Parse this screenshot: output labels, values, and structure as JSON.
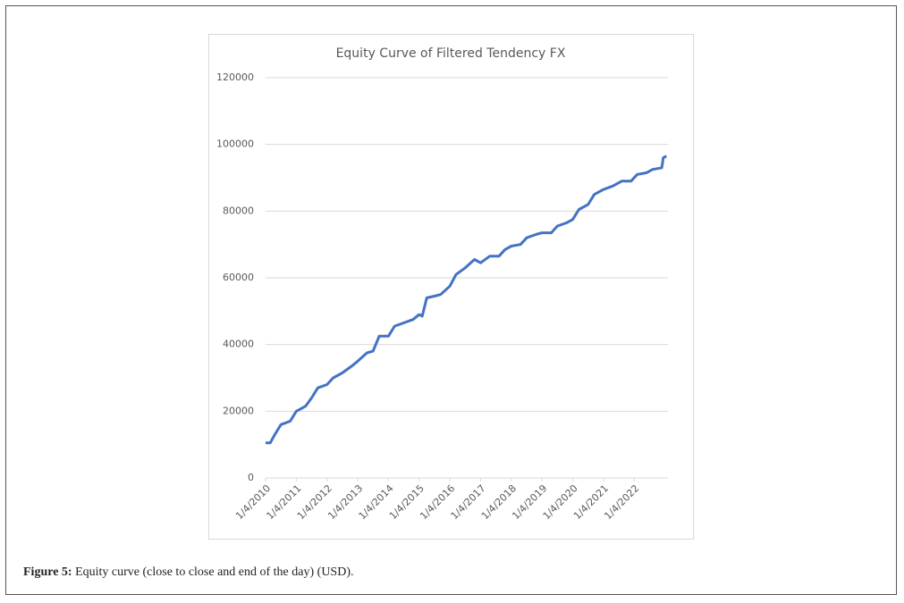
{
  "chart_data": {
    "type": "line",
    "title": "Equity Curve of Filtered Tendency FX",
    "x": [
      2010.0,
      2010.15,
      2010.3,
      2010.5,
      2010.8,
      2011.0,
      2011.3,
      2011.5,
      2011.7,
      2012.0,
      2012.2,
      2012.5,
      2012.8,
      2013.0,
      2013.3,
      2013.5,
      2013.7,
      2014.0,
      2014.2,
      2014.5,
      2014.8,
      2015.0,
      2015.1,
      2015.25,
      2015.5,
      2015.7,
      2016.0,
      2016.2,
      2016.5,
      2016.8,
      2017.0,
      2017.3,
      2017.6,
      2017.8,
      2018.0,
      2018.3,
      2018.5,
      2018.8,
      2019.0,
      2019.3,
      2019.5,
      2019.8,
      2020.0,
      2020.2,
      2020.5,
      2020.7,
      2021.0,
      2021.3,
      2021.6,
      2021.9,
      2022.1,
      2022.4,
      2022.6,
      2022.9,
      2022.95,
      2023.05
    ],
    "series": [
      {
        "color": "#4472c4",
        "values": [
          10500,
          10500,
          13000,
          16000,
          17000,
          20000,
          21500,
          24000,
          27000,
          28000,
          30000,
          31500,
          33500,
          35000,
          37500,
          38000,
          42500,
          42500,
          45500,
          46500,
          47500,
          49000,
          48500,
          54000,
          54500,
          55000,
          57500,
          61000,
          63000,
          65500,
          64500,
          66500,
          66500,
          68500,
          69500,
          70000,
          72000,
          73000,
          73500,
          73500,
          75500,
          76500,
          77500,
          80500,
          82000,
          85000,
          86500,
          87500,
          89000,
          89000,
          91000,
          91500,
          92500,
          93000,
          96000,
          96500
        ]
      }
    ],
    "xlim": [
      2010.0,
      2023.1
    ],
    "xticks": [
      {
        "value": 2010,
        "label": "1/4/2010"
      },
      {
        "value": 2011,
        "label": "1/4/2011"
      },
      {
        "value": 2012,
        "label": "1/4/2012"
      },
      {
        "value": 2013,
        "label": "1/4/2013"
      },
      {
        "value": 2014,
        "label": "1/4/2014"
      },
      {
        "value": 2015,
        "label": "1/4/2015"
      },
      {
        "value": 2016,
        "label": "1/4/2016"
      },
      {
        "value": 2017,
        "label": "1/4/2017"
      },
      {
        "value": 2018,
        "label": "1/4/2018"
      },
      {
        "value": 2019,
        "label": "1/4/2019"
      },
      {
        "value": 2020,
        "label": "1/4/2020"
      },
      {
        "value": 2021,
        "label": "1/4/2021"
      },
      {
        "value": 2022,
        "label": "1/4/2022"
      }
    ],
    "ylim": [
      0,
      120000
    ],
    "yticks": [
      0,
      20000,
      40000,
      60000,
      80000,
      100000,
      120000
    ],
    "grid": true
  },
  "caption": {
    "label": "Figure 5:",
    "text": "Equity curve (close to close and end of the day) (USD)."
  }
}
